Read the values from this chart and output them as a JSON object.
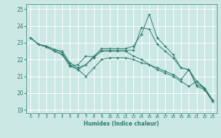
{
  "xlabel": "Humidex (Indice chaleur)",
  "background_color": "#cce8e4",
  "grid_color": "#ffffff",
  "line_color": "#2d7a6e",
  "xlim": [
    -0.5,
    23.5
  ],
  "ylim": [
    18.8,
    25.3
  ],
  "yticks": [
    19,
    20,
    21,
    22,
    23,
    24,
    25
  ],
  "series": [
    [
      23.3,
      22.9,
      22.8,
      22.6,
      22.5,
      21.8,
      21.5,
      21.7,
      22.2,
      22.65,
      22.65,
      22.65,
      22.65,
      22.8,
      23.5,
      24.7,
      23.3,
      22.8,
      22.3,
      21.5,
      21.4,
      20.4,
      20.2,
      19.5
    ],
    [
      23.3,
      22.9,
      22.8,
      22.6,
      22.4,
      21.7,
      21.4,
      21.7,
      22.1,
      22.55,
      22.55,
      22.55,
      22.55,
      22.55,
      23.9,
      23.8,
      22.9,
      22.5,
      22.1,
      21.5,
      21.4,
      20.7,
      20.3,
      19.5
    ],
    [
      23.3,
      22.9,
      22.75,
      22.5,
      22.3,
      21.6,
      21.7,
      22.2,
      22.15,
      22.5,
      22.5,
      22.5,
      22.5,
      22.2,
      22.0,
      21.7,
      21.5,
      21.3,
      21.1,
      20.8,
      21.4,
      20.5,
      20.3,
      19.6
    ],
    [
      23.3,
      22.9,
      22.75,
      22.5,
      22.3,
      21.6,
      21.4,
      21.0,
      21.5,
      22.0,
      22.1,
      22.1,
      22.1,
      22.0,
      21.8,
      21.7,
      21.4,
      21.2,
      21.0,
      20.7,
      20.4,
      20.7,
      20.2,
      19.5
    ]
  ]
}
